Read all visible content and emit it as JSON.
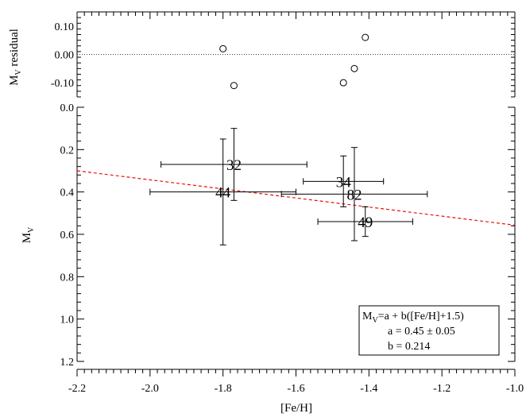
{
  "chart_data": {
    "type": "scatter",
    "xlabel": "[Fe/H]",
    "xlim": [
      -2.2,
      -1.0
    ],
    "x_ticks": [
      "-2.2",
      "-2.0",
      "-1.8",
      "-1.6",
      "-1.4",
      "-1.2",
      "-1.0"
    ],
    "x_tick_values": [
      -2.2,
      -2.0,
      -1.8,
      -1.6,
      -1.4,
      -1.2,
      -1.0
    ],
    "panels": [
      {
        "name": "residual",
        "ylabel_main": "M",
        "ylabel_sub": "V",
        "ylabel_suffix": " residual",
        "ylim": [
          -0.15,
          0.15
        ],
        "y_ticks": [
          "0.10",
          "0.00",
          "-0.10"
        ],
        "y_tick_values": [
          0.1,
          0.0,
          -0.1
        ],
        "zero_line": 0.0,
        "points": [
          {
            "x": -1.8,
            "y": 0.02
          },
          {
            "x": -1.77,
            "y": -0.11
          },
          {
            "x": -1.47,
            "y": -0.1
          },
          {
            "x": -1.44,
            "y": -0.05
          },
          {
            "x": -1.41,
            "y": 0.06
          }
        ]
      },
      {
        "name": "absolute-magnitude",
        "ylabel_main": "M",
        "ylabel_sub": "V",
        "ylim": [
          0.0,
          1.2
        ],
        "y_inverted": true,
        "y_ticks": [
          "0.0",
          "0.2",
          "0.4",
          "0.6",
          "0.8",
          "1.0",
          "1.2"
        ],
        "y_tick_values": [
          0.0,
          0.2,
          0.4,
          0.6,
          0.8,
          1.0,
          1.2
        ],
        "points": [
          {
            "label": "32",
            "x": -1.77,
            "y": 0.27,
            "xerr": 0.2,
            "yerr": 0.17
          },
          {
            "label": "44",
            "x": -1.8,
            "y": 0.4,
            "xerr": 0.2,
            "yerr": 0.25
          },
          {
            "label": "34",
            "x": -1.47,
            "y": 0.35,
            "xerr": 0.11,
            "yerr": 0.12
          },
          {
            "label": "82",
            "x": -1.44,
            "y": 0.41,
            "xerr": 0.2,
            "yerr": 0.22
          },
          {
            "label": "49",
            "x": -1.41,
            "y": 0.54,
            "xerr": 0.13,
            "yerr": 0.07
          }
        ],
        "fit_line": {
          "color": "#e8120c",
          "style": "dashed",
          "points": [
            {
              "x": -2.2,
              "y": 0.3
            },
            {
              "x": -1.0,
              "y": 0.557
            }
          ]
        },
        "legend": {
          "placement": "bottom-right",
          "line1_main": "M",
          "line1_sub": "V",
          "line1_rest": "=a + b([Fe/H]+1.5)",
          "line2": "a = 0.45 ± 0.05",
          "line3": "b = 0.214"
        }
      }
    ]
  }
}
